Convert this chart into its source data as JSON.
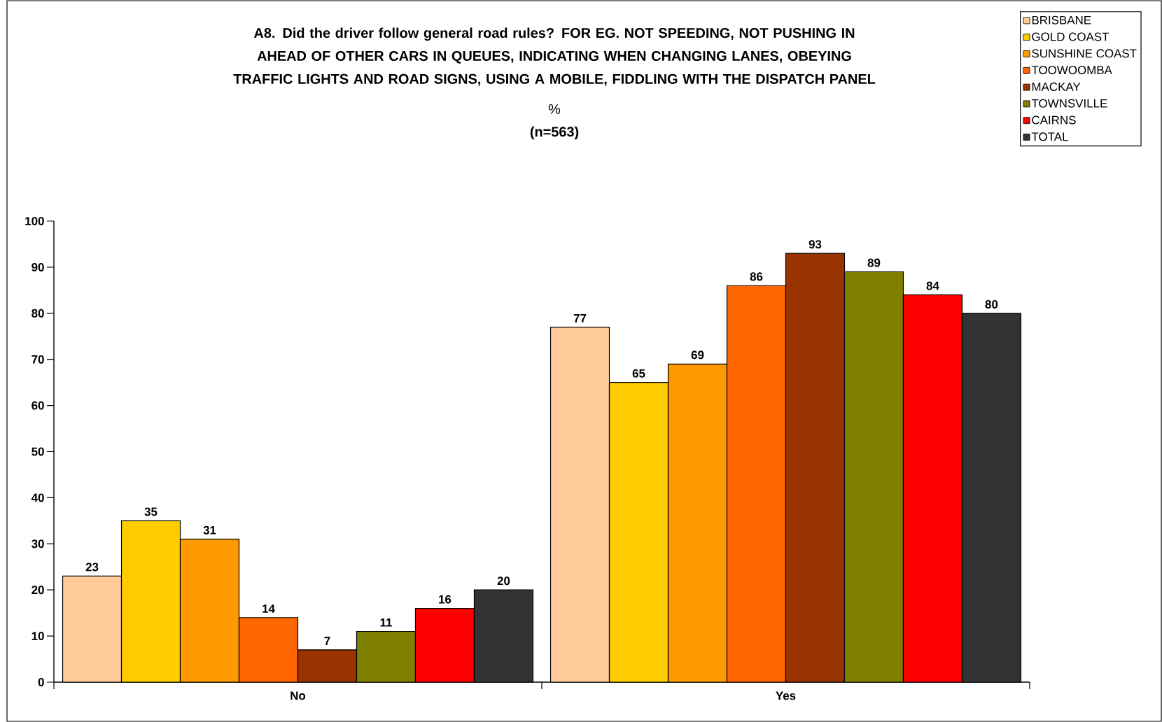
{
  "chart_data": {
    "type": "bar",
    "title": "A8. Did the driver follow general road rules?  FOR EG.  NOT SPEEDING, NOT PUSHING IN AHEAD OF OTHER CARS IN QUEUES, INDICATING WHEN CHANGING LANES, OBEYING TRAFFIC LIGHTS AND ROAD SIGNS, USING A MOBILE, FIDDLING WITH THE DISPATCH PANEL",
    "subtitle": "%",
    "annotations": [
      "(n=563)"
    ],
    "categories": [
      "No",
      "Yes"
    ],
    "series": [
      {
        "name": "BRISBANE",
        "color": "#ffcc99",
        "values": [
          23,
          77
        ]
      },
      {
        "name": "GOLD COAST",
        "color": "#ffcc00",
        "values": [
          35,
          65
        ]
      },
      {
        "name": "SUNSHINE COAST",
        "color": "#ff9900",
        "values": [
          31,
          69
        ]
      },
      {
        "name": "TOOWOOMBA",
        "color": "#ff6600",
        "values": [
          14,
          86
        ]
      },
      {
        "name": "MACKAY",
        "color": "#993300",
        "values": [
          7,
          93
        ]
      },
      {
        "name": "TOWNSVILLE",
        "color": "#808000",
        "values": [
          11,
          89
        ]
      },
      {
        "name": "CAIRNS",
        "color": "#ff0000",
        "values": [
          16,
          84
        ]
      },
      {
        "name": "TOTAL",
        "color": "#333333",
        "values": [
          20,
          80
        ]
      }
    ],
    "ylim": [
      0,
      100
    ],
    "yticks": [
      0,
      10,
      20,
      30,
      40,
      50,
      60,
      70,
      80,
      90,
      100
    ],
    "data_labels": true,
    "legend": "top right",
    "grid": false
  }
}
